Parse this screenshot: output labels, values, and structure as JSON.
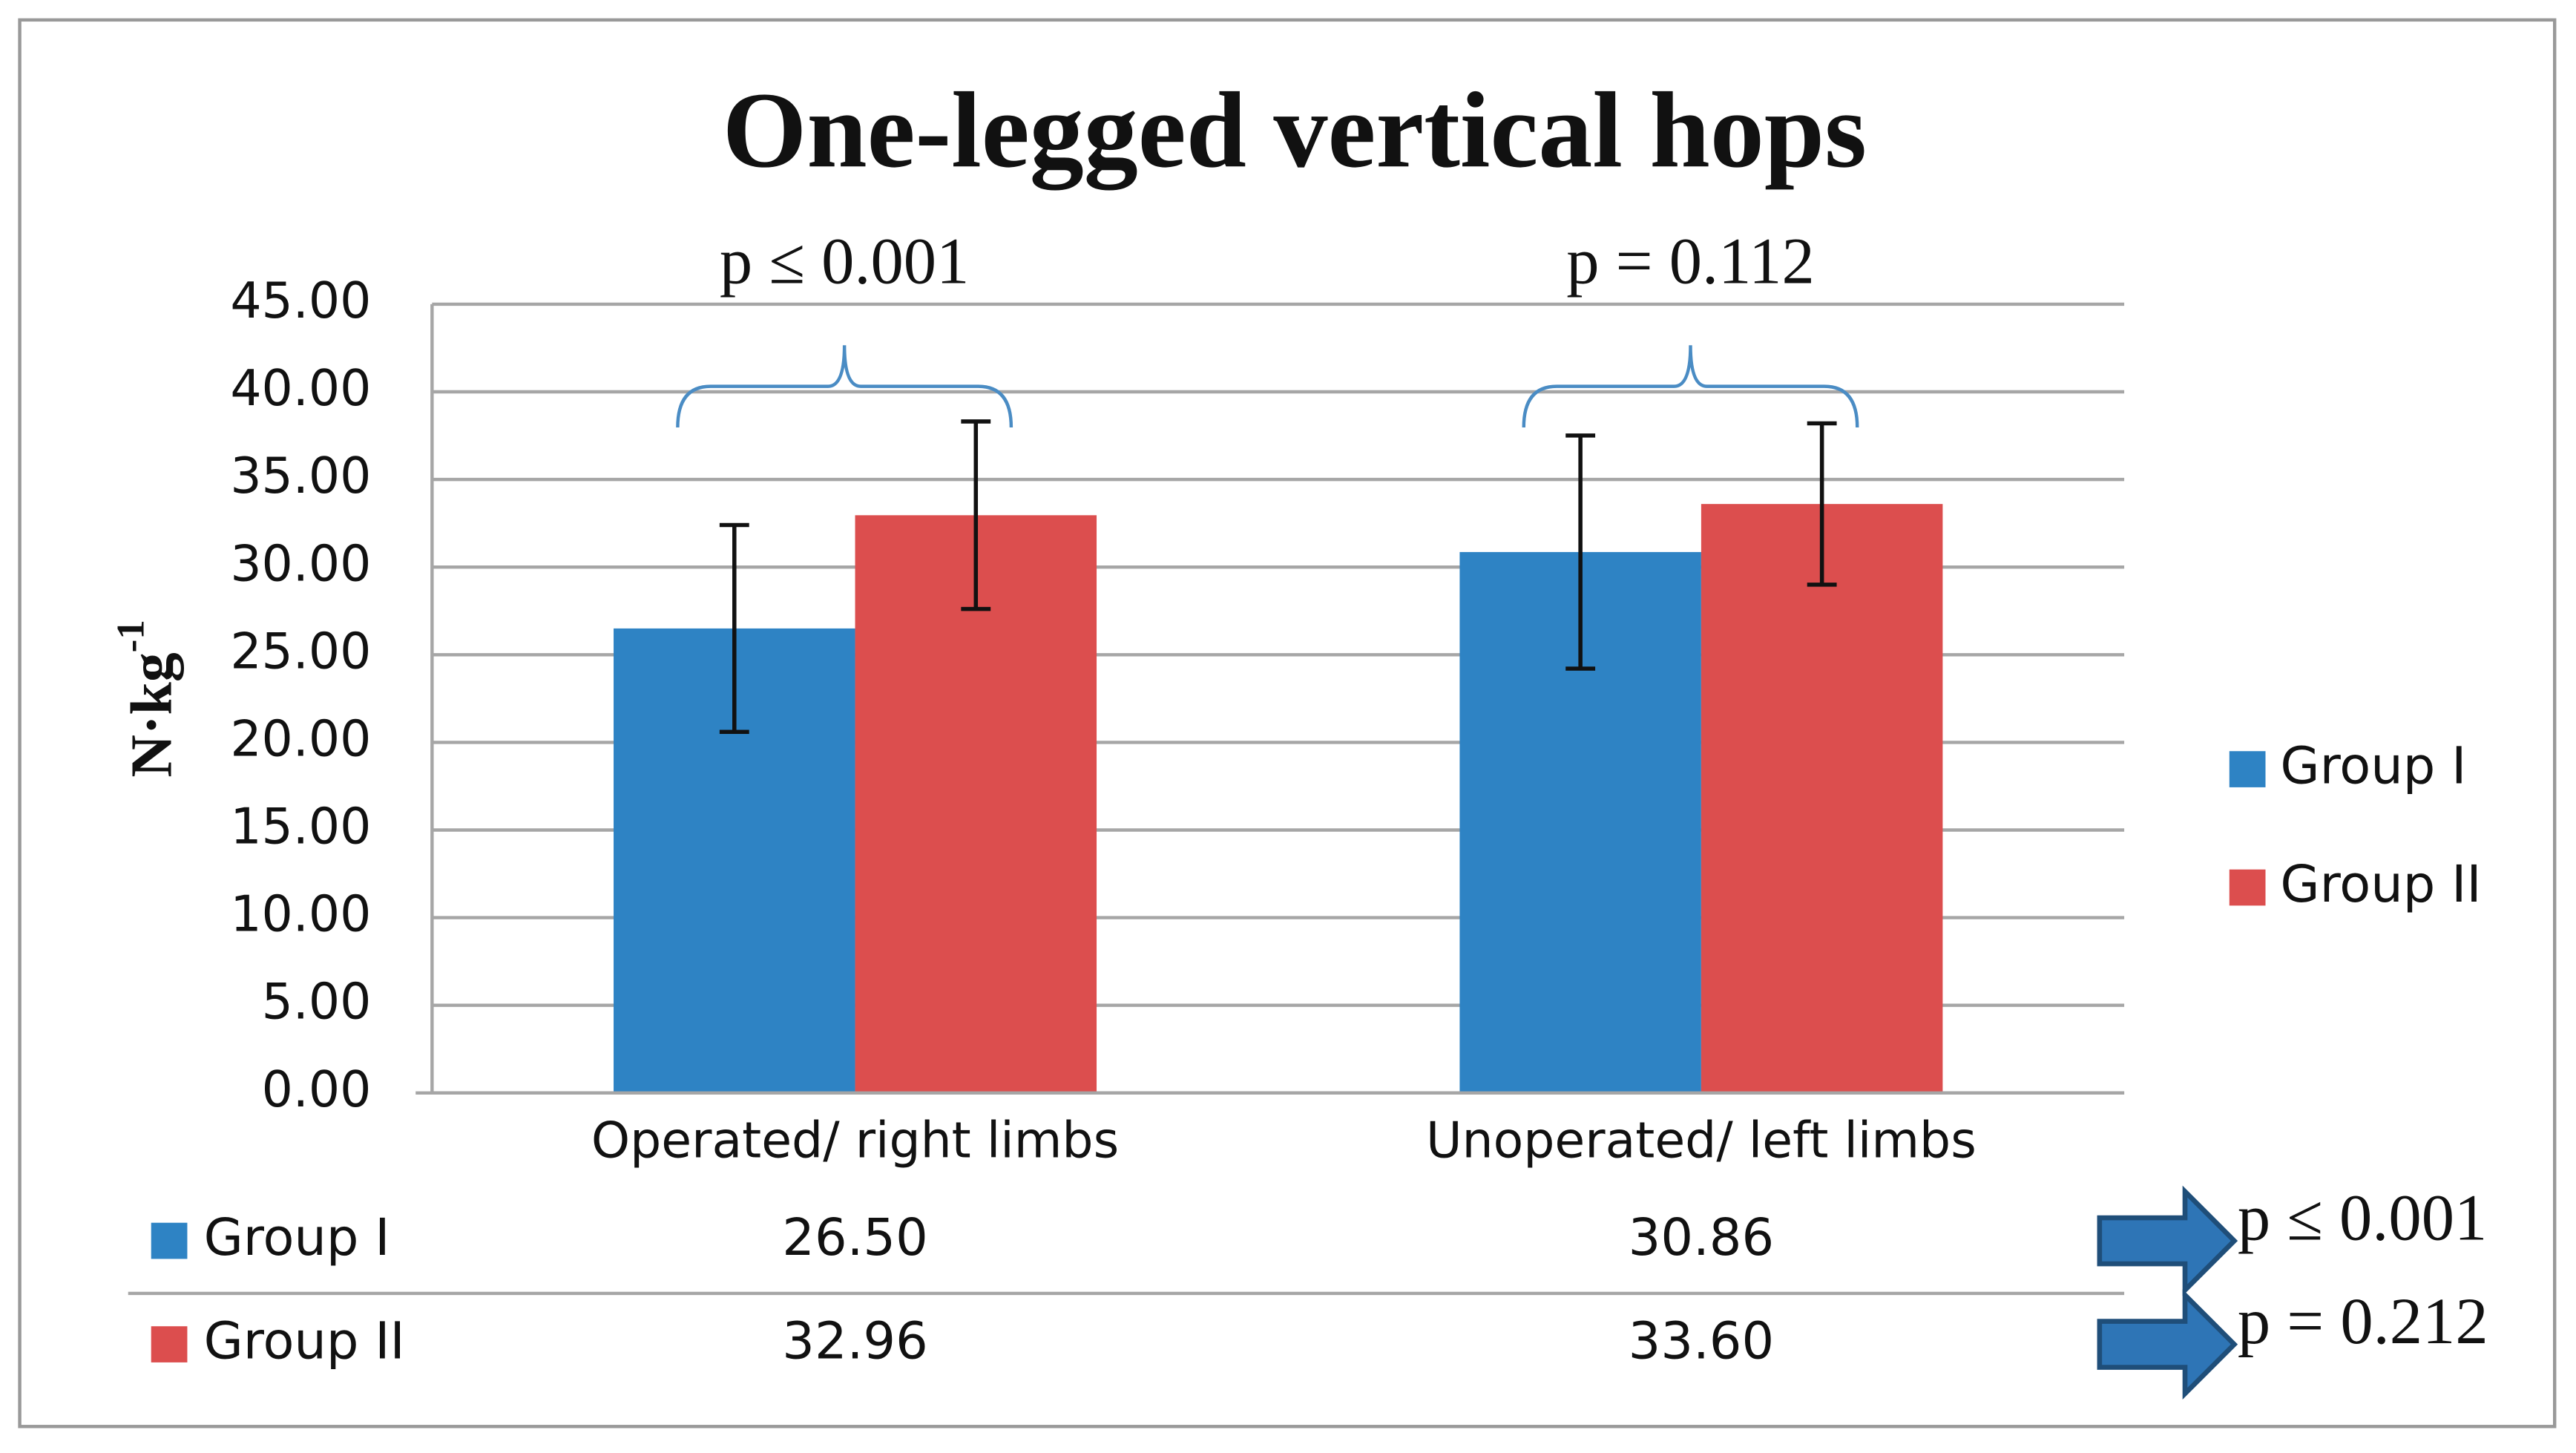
{
  "chart_data": {
    "type": "bar",
    "title": "One-legged vertical hops",
    "ylabel": {
      "text": "N·kg",
      "superscript": "-1"
    },
    "categories": [
      "Operated/ right limbs",
      "Unoperated/ left limbs"
    ],
    "series": [
      {
        "name": "Group I",
        "color": "#2e83c4",
        "values": [
          26.5,
          30.86
        ],
        "value_labels": [
          "26.50",
          "30.86"
        ],
        "errors": [
          5.9,
          6.65
        ]
      },
      {
        "name": "Group II",
        "color": "#dc4e4e",
        "values": [
          32.96,
          33.6
        ],
        "value_labels": [
          "32.96",
          "33.60"
        ],
        "errors": [
          5.35,
          4.6
        ]
      }
    ],
    "ylim": [
      0,
      45
    ],
    "yticks": [
      {
        "value": 0,
        "label": "0.00"
      },
      {
        "value": 5,
        "label": "5.00"
      },
      {
        "value": 10,
        "label": "10.00"
      },
      {
        "value": 15,
        "label": "15.00"
      },
      {
        "value": 20,
        "label": "20.00"
      },
      {
        "value": 25,
        "label": "25.00"
      },
      {
        "value": 30,
        "label": "30.00"
      },
      {
        "value": 35,
        "label": "35.00"
      },
      {
        "value": 40,
        "label": "40.00"
      },
      {
        "value": 45,
        "label": "45.00"
      }
    ],
    "grid": true,
    "legend": "right",
    "category_annotations": [
      "p ≤ 0.001",
      "p = 0.112"
    ],
    "series_annotations": [
      "p ≤ 0.001",
      "p = 0.212"
    ]
  }
}
